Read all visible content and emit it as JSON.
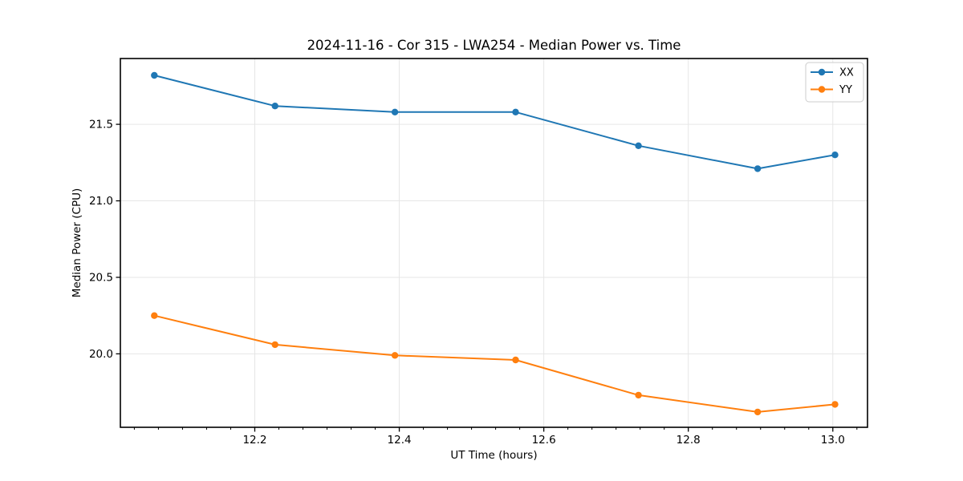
{
  "chart_data": {
    "type": "line",
    "title": "2024-11-16 - Cor 315 - LWA254 - Median Power vs. Time",
    "xlabel": "UT Time (hours)",
    "ylabel": "Median Power (CPU)",
    "x": [
      12.061,
      12.228,
      12.394,
      12.561,
      12.731,
      12.896,
      13.003
    ],
    "series": [
      {
        "name": "XX",
        "color": "#1f77b4",
        "values": [
          21.82,
          21.62,
          21.58,
          21.58,
          21.36,
          21.21,
          21.3
        ]
      },
      {
        "name": "YY",
        "color": "#ff7f0e",
        "values": [
          20.25,
          20.06,
          19.99,
          19.96,
          19.73,
          19.62,
          19.67
        ]
      }
    ],
    "xlim": [
      12.014,
      13.048
    ],
    "ylim": [
      19.52,
      21.93
    ],
    "xticks": {
      "values": [
        12.2,
        12.4,
        12.6,
        12.8,
        13.0
      ],
      "labels": [
        "12.2",
        "12.4",
        "12.6",
        "12.8",
        "13.0"
      ],
      "minor_divisions": 6,
      "major_step": 0.2
    },
    "yticks": {
      "values": [
        20.0,
        20.5,
        21.0,
        21.5
      ],
      "labels": [
        "20.0",
        "20.5",
        "21.0",
        "21.5"
      ]
    },
    "grid": true,
    "legend": {
      "position": "upper-right",
      "entries": [
        "XX",
        "YY"
      ]
    },
    "marker": "circle"
  },
  "style": {
    "grid_color": "#e6e6e6",
    "spine_color": "#000000",
    "tick_color": "#000000",
    "text_color": "#000000",
    "legend_border_color": "#cccccc",
    "legend_bg_color": "#ffffff",
    "background_color": "#ffffff"
  }
}
